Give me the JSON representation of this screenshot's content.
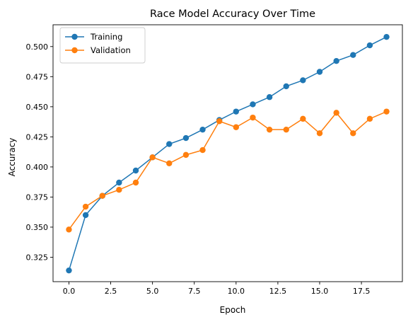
{
  "chart_data": {
    "type": "line",
    "title": "Race Model Accuracy Over Time",
    "xlabel": "Epoch",
    "ylabel": "Accuracy",
    "x": [
      0,
      1,
      2,
      3,
      4,
      5,
      6,
      7,
      8,
      9,
      10,
      11,
      12,
      13,
      14,
      15,
      16,
      17,
      18,
      19
    ],
    "xlim": [
      -0.95,
      19.95
    ],
    "ylim": [
      0.3047,
      0.5181
    ],
    "xticks": [
      0.0,
      2.5,
      5.0,
      7.5,
      10.0,
      12.5,
      15.0,
      17.5
    ],
    "xtick_labels": [
      "0.0",
      "2.5",
      "5.0",
      "7.5",
      "10.0",
      "12.5",
      "15.0",
      "17.5"
    ],
    "yticks": [
      0.325,
      0.35,
      0.375,
      0.4,
      0.425,
      0.45,
      0.475,
      0.5
    ],
    "ytick_labels": [
      "0.325",
      "0.350",
      "0.375",
      "0.400",
      "0.425",
      "0.450",
      "0.475",
      "0.500"
    ],
    "grid": false,
    "legend_position": "top-left",
    "series": [
      {
        "name": "Training",
        "color": "#1f77b4",
        "values": [
          0.314,
          0.36,
          0.376,
          0.387,
          0.397,
          0.408,
          0.419,
          0.424,
          0.431,
          0.439,
          0.446,
          0.452,
          0.458,
          0.467,
          0.472,
          0.479,
          0.488,
          0.493,
          0.501,
          0.508
        ]
      },
      {
        "name": "Validation",
        "color": "#ff7f0e",
        "values": [
          0.348,
          0.367,
          0.376,
          0.381,
          0.387,
          0.408,
          0.403,
          0.41,
          0.414,
          0.438,
          0.433,
          0.441,
          0.431,
          0.431,
          0.44,
          0.428,
          0.445,
          0.428,
          0.44,
          0.446
        ]
      }
    ]
  }
}
